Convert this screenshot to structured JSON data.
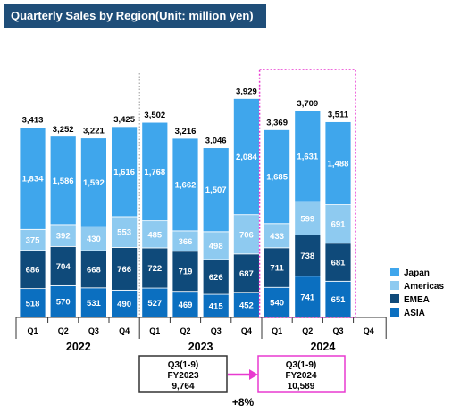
{
  "chart_data": {
    "type": "bar",
    "stacked": true,
    "title": "Quarterly Sales by Region(Unit: million yen)",
    "categories": [
      "Q1",
      "Q2",
      "Q3",
      "Q4",
      "Q1",
      "Q2",
      "Q3",
      "Q4",
      "Q1",
      "Q2",
      "Q3",
      "Q4"
    ],
    "years": [
      {
        "label": "2022",
        "quarters": 4
      },
      {
        "label": "2023",
        "quarters": 4
      },
      {
        "label": "2024",
        "quarters": 4
      }
    ],
    "series": [
      {
        "name": "ASIA",
        "color": "#0b6fc0",
        "values": [
          518,
          570,
          531,
          490,
          527,
          469,
          415,
          452,
          540,
          741,
          651,
          null
        ]
      },
      {
        "name": "EMEA",
        "color": "#0f4a7a",
        "values": [
          686,
          704,
          668,
          766,
          722,
          719,
          626,
          687,
          711,
          738,
          681,
          null
        ]
      },
      {
        "name": "Americas",
        "color": "#8ecaf0",
        "values": [
          375,
          392,
          430,
          553,
          485,
          366,
          498,
          706,
          433,
          599,
          691,
          null
        ]
      },
      {
        "name": "Japan",
        "color": "#3fa6ec",
        "values": [
          1834,
          1586,
          1592,
          1616,
          1768,
          1662,
          1507,
          2084,
          1685,
          1631,
          1488,
          null
        ]
      }
    ],
    "totals": [
      3413,
      3252,
      3221,
      3425,
      3502,
      3216,
      3046,
      3929,
      3369,
      3709,
      3511,
      null
    ],
    "legend_order": [
      "Japan",
      "Americas",
      "EMEA",
      "ASIA"
    ],
    "legend_position": "right"
  },
  "comparison": {
    "left_box": {
      "line1": "Q3(1-9)",
      "line2": "FY2023",
      "line3": "9,764"
    },
    "right_box": {
      "line1": "Q3(1-9)",
      "line2": "FY2024",
      "line3": "10,589"
    },
    "growth": "+8%",
    "highlight_color": "#e83ad0"
  }
}
